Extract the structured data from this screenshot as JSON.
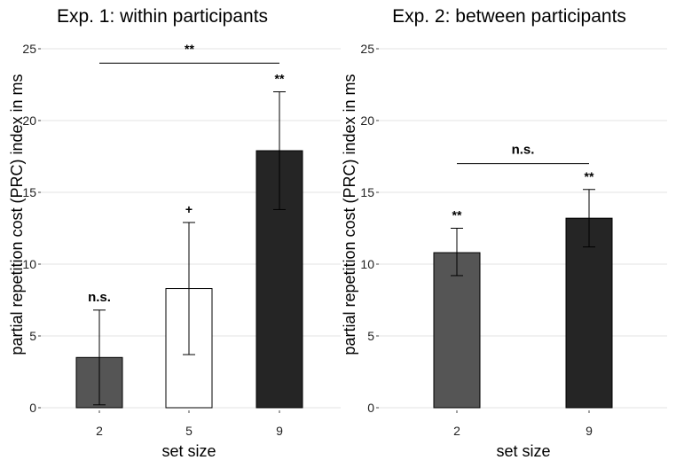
{
  "chart_data": [
    {
      "type": "bar",
      "title": "Exp. 1: within participants",
      "xlabel": "set size",
      "ylabel": "partial repetition cost (PRC) index in ms",
      "ylim": [
        0,
        25
      ],
      "yticks": [
        0,
        5,
        10,
        15,
        20,
        25
      ],
      "grid": true,
      "categories": [
        "2",
        "5",
        "9"
      ],
      "values": [
        3.5,
        8.3,
        17.9
      ],
      "errors": [
        [
          0.2,
          6.8
        ],
        [
          3.7,
          12.9
        ],
        [
          13.8,
          22.0
        ]
      ],
      "colors": [
        "#555555",
        "#ffffff",
        "#252525"
      ],
      "bar_labels": [
        "n.s.",
        "+",
        "**"
      ],
      "comparisons": [
        {
          "from": "2",
          "to": "9",
          "y": 24,
          "label": "**"
        }
      ]
    },
    {
      "type": "bar",
      "title": "Exp. 2: between participants",
      "xlabel": "set size",
      "ylabel": "partial repetition cost (PRC) index in ms",
      "ylim": [
        0,
        25
      ],
      "yticks": [
        0,
        5,
        10,
        15,
        20,
        25
      ],
      "grid": true,
      "categories": [
        "2",
        "9"
      ],
      "values": [
        10.8,
        13.2
      ],
      "errors": [
        [
          9.2,
          12.5
        ],
        [
          11.2,
          15.2
        ]
      ],
      "colors": [
        "#555555",
        "#252525"
      ],
      "bar_labels": [
        "**",
        "**"
      ],
      "comparisons": [
        {
          "from": "2",
          "to": "9",
          "y": 17,
          "label": "n.s."
        }
      ]
    }
  ]
}
